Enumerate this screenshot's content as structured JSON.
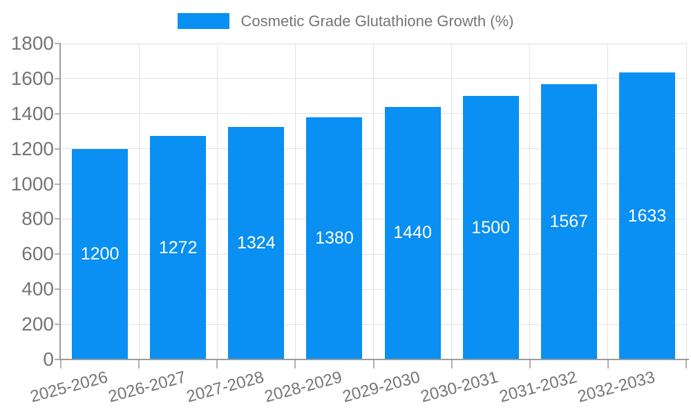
{
  "legend": {
    "label": "Cosmetic Grade Glutathione Growth (%)"
  },
  "chart_data": {
    "type": "bar",
    "title": "Cosmetic Grade Glutathione Growth (%)",
    "series_name": "Cosmetic Grade Glutathione Growth (%)",
    "categories": [
      "2025-2026",
      "2026-2027",
      "2027-2028",
      "2028-2029",
      "2029-2030",
      "2030-2031",
      "2031-2032",
      "2032-2033"
    ],
    "values": [
      1200,
      1272,
      1324,
      1380,
      1440,
      1500,
      1567,
      1633
    ],
    "value_labels": [
      "1200",
      "1272",
      "1324",
      "1380",
      "1440",
      "1500",
      "1567",
      "1633"
    ],
    "ytick_labels": [
      "0",
      "200",
      "400",
      "600",
      "800",
      "1000",
      "1200",
      "1400",
      "1600",
      "1800"
    ],
    "ylim": [
      0,
      1800
    ],
    "ytick_step": 200,
    "grid": true,
    "legend_position": "top-center",
    "x_label_rotation_deg": -15,
    "colors": {
      "bar": "#0a8ff2",
      "value_label": "#ffffff",
      "axis_text": "#757575",
      "gridline": "#e2e2e2",
      "axis_line": "#9b9b9b",
      "tick": "#b0b0b0",
      "background": "#ffffff"
    }
  }
}
